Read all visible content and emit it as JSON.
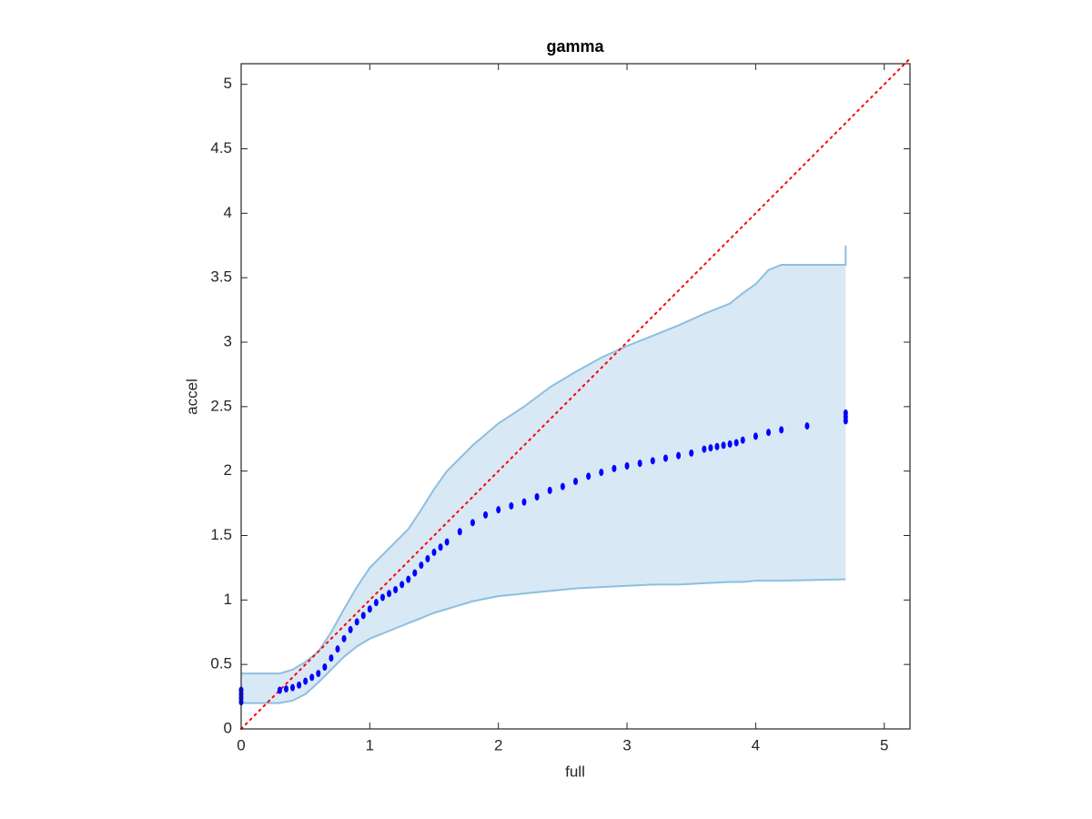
{
  "chart_data": {
    "type": "scatter",
    "title": "gamma",
    "x_label": "full",
    "y_label": "accel",
    "xlim": [
      0,
      5.2
    ],
    "ylim": [
      0,
      5.16
    ],
    "xticks": [
      0,
      1,
      2,
      3,
      4,
      5
    ],
    "yticks": [
      0,
      0.5,
      1,
      1.5,
      2,
      2.5,
      3,
      3.5,
      4,
      4.5,
      5
    ],
    "grid": false,
    "series": [
      {
        "color": "#0000ff",
        "x": [
          0,
          0,
          0,
          0,
          0.3,
          0.35,
          0.4,
          0.45,
          0.5,
          0.55,
          0.6,
          0.65,
          0.7,
          0.75,
          0.8,
          0.85,
          0.9,
          0.95,
          1.0,
          1.05,
          1.1,
          1.15,
          1.2,
          1.25,
          1.3,
          1.35,
          1.4,
          1.45,
          1.5,
          1.55,
          1.6,
          1.7,
          1.8,
          1.9,
          2.0,
          2.1,
          2.2,
          2.3,
          2.4,
          2.5,
          2.6,
          2.7,
          2.8,
          2.9,
          3.0,
          3.1,
          3.2,
          3.3,
          3.4,
          3.5,
          3.6,
          3.65,
          3.7,
          3.75,
          3.8,
          3.85,
          3.9,
          4.0,
          4.1,
          4.2,
          4.4,
          4.7,
          4.7,
          4.7
        ],
        "values": [
          0.21,
          0.24,
          0.27,
          0.3,
          0.3,
          0.31,
          0.32,
          0.34,
          0.37,
          0.4,
          0.43,
          0.48,
          0.55,
          0.62,
          0.7,
          0.77,
          0.83,
          0.88,
          0.93,
          0.98,
          1.02,
          1.05,
          1.08,
          1.12,
          1.16,
          1.21,
          1.27,
          1.32,
          1.37,
          1.41,
          1.45,
          1.53,
          1.6,
          1.66,
          1.7,
          1.73,
          1.76,
          1.8,
          1.85,
          1.88,
          1.92,
          1.96,
          1.99,
          2.02,
          2.04,
          2.06,
          2.08,
          2.1,
          2.12,
          2.14,
          2.17,
          2.18,
          2.19,
          2.2,
          2.21,
          2.22,
          2.24,
          2.27,
          2.3,
          2.32,
          2.35,
          2.39,
          2.42,
          2.45
        ]
      }
    ],
    "band": {
      "color": "#8dbfe0",
      "fill": "#d8e8f5",
      "x": [
        0,
        0.3,
        0.4,
        0.5,
        0.6,
        0.7,
        0.8,
        0.9,
        1.0,
        1.1,
        1.2,
        1.3,
        1.4,
        1.5,
        1.6,
        1.8,
        2.0,
        2.2,
        2.4,
        2.6,
        2.8,
        3.0,
        3.2,
        3.4,
        3.6,
        3.8,
        3.9,
        4.0,
        4.1,
        4.2,
        4.7,
        4.7
      ],
      "lower": [
        0.2,
        0.2,
        0.22,
        0.27,
        0.36,
        0.46,
        0.56,
        0.64,
        0.7,
        0.74,
        0.78,
        0.82,
        0.86,
        0.9,
        0.93,
        0.99,
        1.03,
        1.05,
        1.07,
        1.09,
        1.1,
        1.11,
        1.12,
        1.12,
        1.13,
        1.14,
        1.14,
        1.15,
        1.15,
        1.15,
        1.16,
        1.16
      ],
      "upper": [
        0.43,
        0.43,
        0.46,
        0.52,
        0.6,
        0.75,
        0.93,
        1.1,
        1.25,
        1.35,
        1.45,
        1.55,
        1.7,
        1.86,
        2.0,
        2.2,
        2.37,
        2.5,
        2.65,
        2.77,
        2.88,
        2.97,
        3.05,
        3.13,
        3.22,
        3.3,
        3.38,
        3.45,
        3.56,
        3.6,
        3.6,
        3.75
      ]
    },
    "reference_line": {
      "color": "#ff0000",
      "x": [
        0,
        5.2
      ],
      "values": [
        0,
        5.2
      ]
    }
  }
}
